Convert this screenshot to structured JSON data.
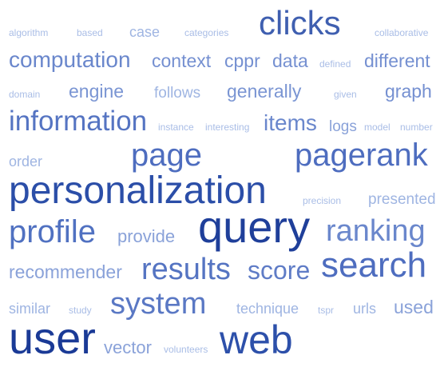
{
  "words": [
    {
      "id": "algorithm",
      "text": "algorithm",
      "weight": 1,
      "color": "#a9bde6"
    },
    {
      "id": "based",
      "text": "based",
      "weight": 1,
      "color": "#a9bde6"
    },
    {
      "id": "case",
      "text": "case",
      "weight": 2,
      "color": "#9fb5e2"
    },
    {
      "id": "categories",
      "text": "categories",
      "weight": 1,
      "color": "#a9bde6"
    },
    {
      "id": "clicks",
      "text": "clicks",
      "weight": 9,
      "color": "#3f5fb0"
    },
    {
      "id": "collaborative",
      "text": "collaborative",
      "weight": 1,
      "color": "#a9bde6"
    },
    {
      "id": "computation",
      "text": "computation",
      "weight": 5,
      "color": "#6a87cc"
    },
    {
      "id": "context",
      "text": "context",
      "weight": 4,
      "color": "#7590d1"
    },
    {
      "id": "cppr",
      "text": "cppr",
      "weight": 4,
      "color": "#7590d1"
    },
    {
      "id": "data",
      "text": "data",
      "weight": 4,
      "color": "#7590d1"
    },
    {
      "id": "defined",
      "text": "defined",
      "weight": 1,
      "color": "#a9bde6"
    },
    {
      "id": "different",
      "text": "different",
      "weight": 4,
      "color": "#7590d1"
    },
    {
      "id": "domain",
      "text": "domain",
      "weight": 1,
      "color": "#a9bde6"
    },
    {
      "id": "engine",
      "text": "engine",
      "weight": 4,
      "color": "#7a95d3"
    },
    {
      "id": "follows",
      "text": "follows",
      "weight": 2,
      "color": "#9fb5e2"
    },
    {
      "id": "generally",
      "text": "generally",
      "weight": 4,
      "color": "#7a95d3"
    },
    {
      "id": "given",
      "text": "given",
      "weight": 1,
      "color": "#a9bde6"
    },
    {
      "id": "graph",
      "text": "graph",
      "weight": 4,
      "color": "#7590d1"
    },
    {
      "id": "information",
      "text": "information",
      "weight": 7,
      "color": "#5574c2"
    },
    {
      "id": "instance",
      "text": "instance",
      "weight": 1,
      "color": "#a9bde6"
    },
    {
      "id": "interesting",
      "text": "interesting",
      "weight": 1,
      "color": "#a9bde6"
    },
    {
      "id": "items",
      "text": "items",
      "weight": 5,
      "color": "#6a87cc"
    },
    {
      "id": "logs",
      "text": "logs",
      "weight": 3,
      "color": "#8aa2d9"
    },
    {
      "id": "model",
      "text": "model",
      "weight": 1,
      "color": "#a9bde6"
    },
    {
      "id": "number",
      "text": "number",
      "weight": 1,
      "color": "#a9bde6"
    },
    {
      "id": "order",
      "text": "order",
      "weight": 2,
      "color": "#9fb5e2"
    },
    {
      "id": "page",
      "text": "page",
      "weight": 8,
      "color": "#4e6dbf"
    },
    {
      "id": "pagerank",
      "text": "pagerank",
      "weight": 8,
      "color": "#4e6dbf"
    },
    {
      "id": "personalization",
      "text": "personalization",
      "weight": 10,
      "color": "#2b4ea8"
    },
    {
      "id": "precision",
      "text": "precision",
      "weight": 1,
      "color": "#a9bde6"
    },
    {
      "id": "presented",
      "text": "presented",
      "weight": 2,
      "color": "#9fb5e2"
    },
    {
      "id": "profile",
      "text": "profile",
      "weight": 8,
      "color": "#5071c1"
    },
    {
      "id": "provide",
      "text": "provide",
      "weight": 3,
      "color": "#8aa2d9"
    },
    {
      "id": "query",
      "text": "query",
      "weight": 10,
      "color": "#1f3f9a"
    },
    {
      "id": "ranking",
      "text": "ranking",
      "weight": 7,
      "color": "#6a87cc"
    },
    {
      "id": "recommender",
      "text": "recommender",
      "weight": 3,
      "color": "#8aa2d9"
    },
    {
      "id": "results",
      "text": "results",
      "weight": 7,
      "color": "#5574c2"
    },
    {
      "id": "score",
      "text": "score",
      "weight": 6,
      "color": "#5f7cc6"
    },
    {
      "id": "search",
      "text": "search",
      "weight": 8,
      "color": "#4e6dbf"
    },
    {
      "id": "similar",
      "text": "similar",
      "weight": 2,
      "color": "#9fb5e2"
    },
    {
      "id": "study",
      "text": "study",
      "weight": 1,
      "color": "#a9bde6"
    },
    {
      "id": "system",
      "text": "system",
      "weight": 8,
      "color": "#5a78c4"
    },
    {
      "id": "technique",
      "text": "technique",
      "weight": 2,
      "color": "#9fb5e2"
    },
    {
      "id": "tspr",
      "text": "tspr",
      "weight": 1,
      "color": "#a9bde6"
    },
    {
      "id": "urls",
      "text": "urls",
      "weight": 2,
      "color": "#9fb5e2"
    },
    {
      "id": "used",
      "text": "used",
      "weight": 3,
      "color": "#8aa2d9"
    },
    {
      "id": "user",
      "text": "user",
      "weight": 10,
      "color": "#1a3a96"
    },
    {
      "id": "vector",
      "text": "vector",
      "weight": 3,
      "color": "#8aa2d9"
    },
    {
      "id": "volunteers",
      "text": "volunteers",
      "weight": 1,
      "color": "#a9bde6"
    },
    {
      "id": "web",
      "text": "web",
      "weight": 9,
      "color": "#2d50aa"
    }
  ]
}
